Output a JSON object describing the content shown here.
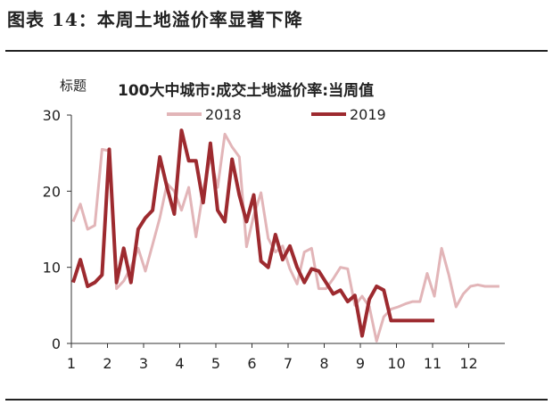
{
  "figure_title": "图表 14：本周土地溢价率显著下降",
  "chart_data": {
    "type": "line",
    "title": "100大中城市:成交土地溢价率:当周值",
    "ylabel": "标题",
    "xlabel": "",
    "ylim": [
      0,
      30
    ],
    "xlim": [
      1,
      13
    ],
    "yticks": [
      0,
      10,
      20,
      30
    ],
    "xticks": [
      1,
      2,
      3,
      4,
      5,
      6,
      7,
      8,
      9,
      10,
      11,
      12
    ],
    "grid": false,
    "legend_position": "top",
    "series": [
      {
        "name": "2018",
        "color": "#e2b5b8",
        "x": [
          1.05,
          1.25,
          1.45,
          1.65,
          1.85,
          2.05,
          2.25,
          2.45,
          2.65,
          2.85,
          3.05,
          3.25,
          3.45,
          3.65,
          3.85,
          4.05,
          4.25,
          4.45,
          4.65,
          4.85,
          5.05,
          5.25,
          5.45,
          5.65,
          5.85,
          6.05,
          6.25,
          6.45,
          6.65,
          6.85,
          7.05,
          7.25,
          7.45,
          7.65,
          7.85,
          8.05,
          8.25,
          8.45,
          8.65,
          8.85,
          9.05,
          9.25,
          9.45,
          9.65,
          9.85,
          10.05,
          10.25,
          10.45,
          10.65,
          10.85,
          11.05,
          11.25,
          11.45,
          11.65,
          11.85,
          12.05,
          12.25,
          12.45,
          12.65,
          12.85
        ],
        "y": [
          16.0,
          18.3,
          15.0,
          15.5,
          25.5,
          25.3,
          7.2,
          8.2,
          10.0,
          12.5,
          9.5,
          13.0,
          16.5,
          21.0,
          20.0,
          17.5,
          20.5,
          14.0,
          20.0,
          24.5,
          20.5,
          27.5,
          25.8,
          24.5,
          12.7,
          16.8,
          19.8,
          13.8,
          12.0,
          12.8,
          9.8,
          7.8,
          12.0,
          12.5,
          7.2,
          7.2,
          8.5,
          10.0,
          9.8,
          5.0,
          6.2,
          4.8,
          0.3,
          3.5,
          4.5,
          4.8,
          5.2,
          5.5,
          5.5,
          9.2,
          6.2,
          12.5,
          9.0,
          4.8,
          6.5,
          7.5,
          7.7,
          7.5,
          7.5,
          7.5
        ]
      },
      {
        "name": "2019",
        "color": "#9d2a2f",
        "x": [
          1.05,
          1.25,
          1.45,
          1.65,
          1.85,
          2.05,
          2.25,
          2.45,
          2.65,
          2.85,
          3.05,
          3.25,
          3.45,
          3.65,
          3.85,
          4.05,
          4.25,
          4.45,
          4.65,
          4.85,
          5.05,
          5.25,
          5.45,
          5.65,
          5.85,
          6.05,
          6.25,
          6.45,
          6.65,
          6.85,
          7.05,
          7.25,
          7.45,
          7.65,
          7.85,
          8.05,
          8.25,
          8.45,
          8.65,
          8.85,
          9.05,
          9.25,
          9.45,
          9.65,
          9.85,
          10.05,
          10.25,
          10.45,
          10.65,
          10.85,
          11.05
        ],
        "y": [
          8.0,
          11.0,
          7.5,
          8.0,
          9.0,
          25.5,
          8.0,
          12.5,
          8.0,
          15.0,
          16.5,
          17.5,
          24.5,
          20.5,
          17.0,
          28.0,
          24.0,
          24.0,
          18.5,
          26.3,
          17.5,
          16.0,
          24.2,
          19.5,
          16.0,
          19.5,
          10.8,
          10.0,
          14.3,
          11.0,
          12.8,
          10.0,
          8.0,
          9.8,
          9.5,
          8.0,
          6.5,
          7.0,
          5.5,
          6.3,
          1.0,
          5.8,
          7.5,
          7.0,
          3.0,
          3.0,
          3.0,
          3.0,
          3.0,
          3.0,
          3.0
        ]
      }
    ]
  }
}
